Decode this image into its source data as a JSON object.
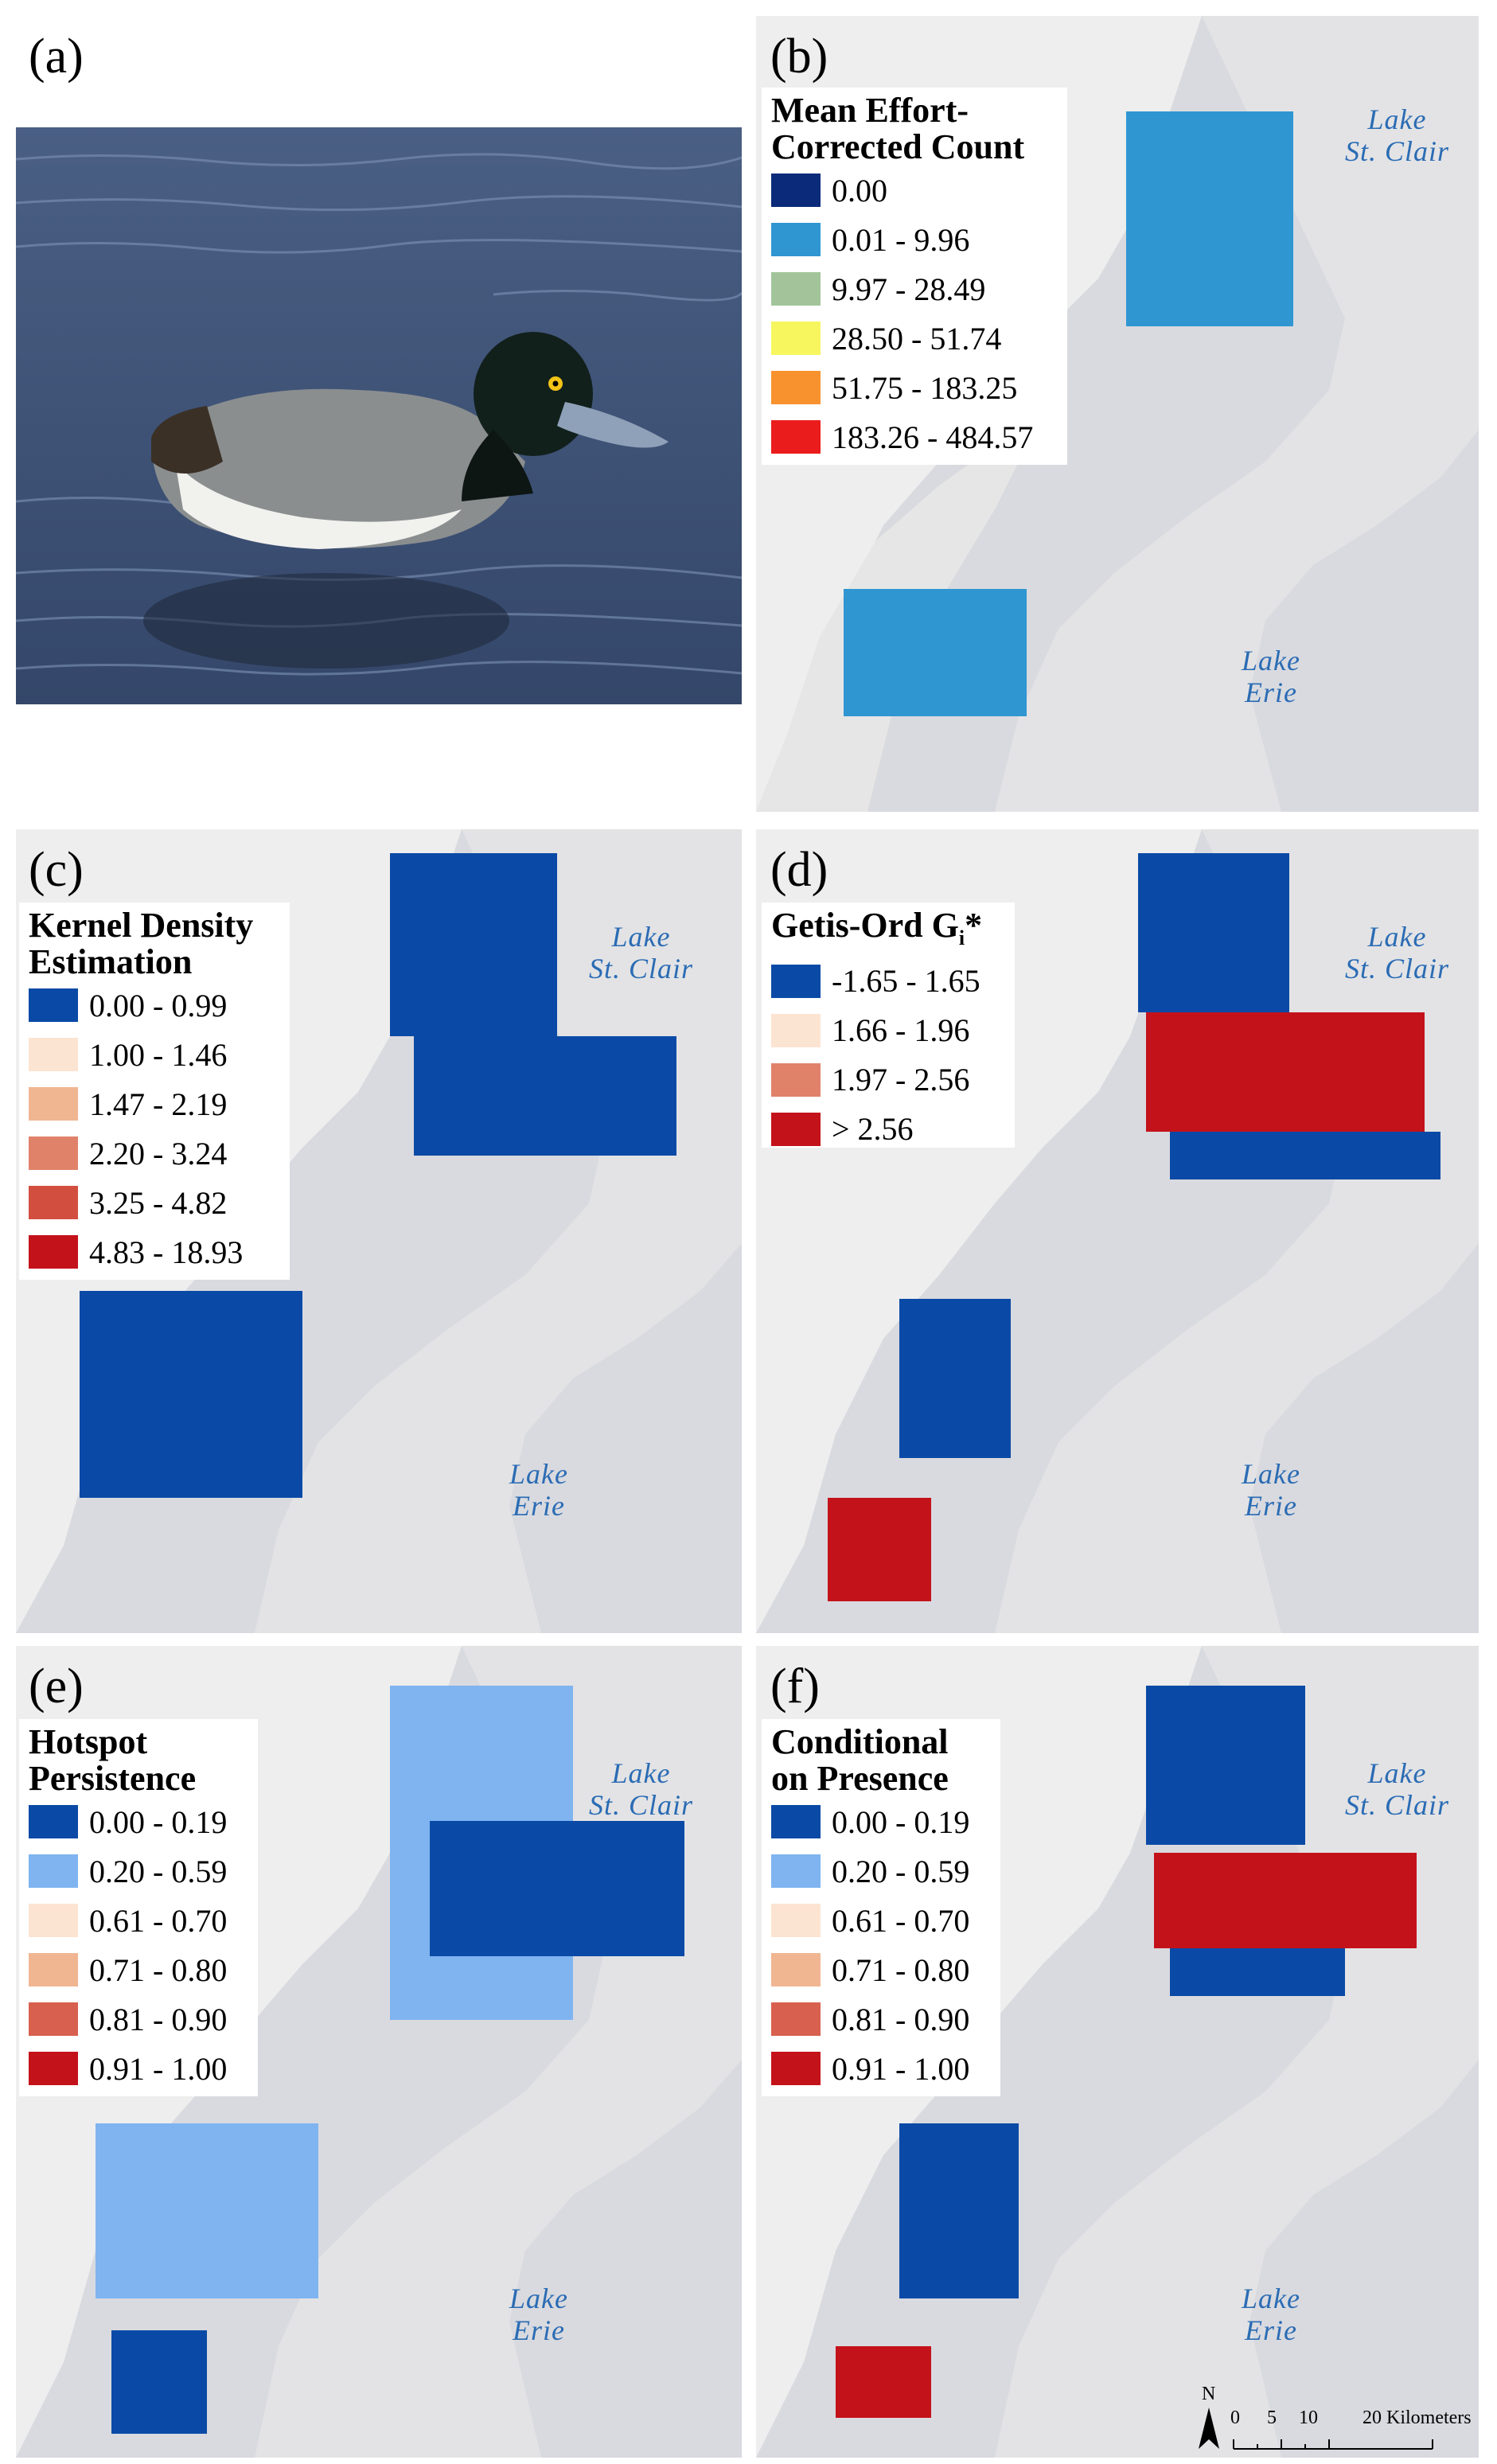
{
  "panels": {
    "a": {
      "label": "(a)"
    },
    "b": {
      "label": "(b)",
      "legend": {
        "title_line1": "Mean Effort-",
        "title_line2": "Corrected Count",
        "items": [
          {
            "label": "0.00",
            "color": "#0b2a7a"
          },
          {
            "label": "0.01 - 9.96",
            "color": "#2f96d2"
          },
          {
            "label": "9.97 - 28.49",
            "color": "#a3c49a"
          },
          {
            "label": "28.50 - 51.74",
            "color": "#f7f65e"
          },
          {
            "label": "51.75 - 183.25",
            "color": "#f8922e"
          },
          {
            "label": "183.26 - 484.57",
            "color": "#ea1c1c"
          }
        ]
      }
    },
    "c": {
      "label": "(c)",
      "legend": {
        "title_line1": "Kernel Density",
        "title_line2": "Estimation",
        "items": [
          {
            "label": "0.00 - 0.99",
            "color": "#0a4aa6"
          },
          {
            "label": "1.00 - 1.46",
            "color": "#fce4d2"
          },
          {
            "label": "1.47 - 2.19",
            "color": "#f0b692"
          },
          {
            "label": "2.20 - 3.24",
            "color": "#e0826a"
          },
          {
            "label": "3.25 - 4.82",
            "color": "#d24f40"
          },
          {
            "label": "4.83 - 18.93",
            "color": "#c4121a"
          }
        ]
      }
    },
    "d": {
      "label": "(d)",
      "legend": {
        "title_text": "Getis-Ord G",
        "title_sub": "i",
        "title_star": "*",
        "items": [
          {
            "label": "-1.65 - 1.65",
            "color": "#0a4aa6"
          },
          {
            "label": "1.66 - 1.96",
            "color": "#fce4d2"
          },
          {
            "label": "1.97 - 2.56",
            "color": "#e0826a"
          },
          {
            "label": "> 2.56",
            "color": "#c4121a"
          }
        ]
      }
    },
    "e": {
      "label": "(e)",
      "legend": {
        "title_line1": "Hotspot",
        "title_line2": "Persistence",
        "items": [
          {
            "label": "0.00 - 0.19",
            "color": "#0a4aa6"
          },
          {
            "label": "0.20 - 0.59",
            "color": "#7fb4f0"
          },
          {
            "label": "0.61 - 0.70",
            "color": "#fce4d2"
          },
          {
            "label": "0.71 - 0.80",
            "color": "#f0b692"
          },
          {
            "label": "0.81 - 0.90",
            "color": "#d8604e"
          },
          {
            "label": "0.91 - 1.00",
            "color": "#c4121a"
          }
        ]
      }
    },
    "f": {
      "label": "(f)",
      "legend": {
        "title_line1": "Conditional",
        "title_line2": "on Presence",
        "items": [
          {
            "label": "0.00 - 0.19",
            "color": "#0a4aa6"
          },
          {
            "label": "0.20 - 0.59",
            "color": "#7fb4f0"
          },
          {
            "label": "0.61 - 0.70",
            "color": "#fce4d2"
          },
          {
            "label": "0.71 - 0.80",
            "color": "#f0b692"
          },
          {
            "label": "0.81 - 0.90",
            "color": "#d8604e"
          },
          {
            "label": "0.91 - 1.00",
            "color": "#c4121a"
          }
        ]
      }
    }
  },
  "lakes": {
    "st_clair_line1": "Lake",
    "st_clair_line2": "St. Clair",
    "erie_line1": "Lake",
    "erie_line2": "Erie"
  },
  "scalebar": {
    "north": "N",
    "ticks": [
      "0",
      "5",
      "10",
      "20 Kilometers"
    ]
  },
  "colors": {
    "water": "#d9dadf",
    "land": "#eeeeee"
  }
}
